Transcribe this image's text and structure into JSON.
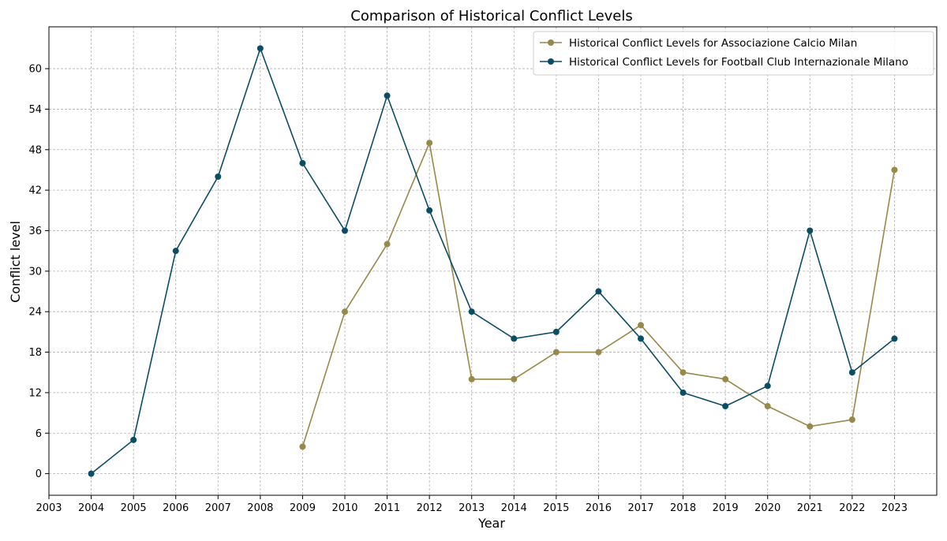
{
  "chart_data": {
    "type": "line",
    "title": "Comparison of Historical Conflict Levels",
    "xlabel": "Year",
    "ylabel": "Conflict level",
    "xlim": [
      2003,
      2024
    ],
    "ylim": [
      -3.2,
      66.2
    ],
    "x_ticks": [
      2003,
      2004,
      2005,
      2006,
      2007,
      2008,
      2009,
      2010,
      2011,
      2012,
      2013,
      2014,
      2015,
      2016,
      2017,
      2018,
      2019,
      2020,
      2021,
      2022,
      2023
    ],
    "y_ticks": [
      0,
      6,
      12,
      18,
      24,
      30,
      36,
      42,
      48,
      54,
      60
    ],
    "grid": true,
    "legend_position": "top-right",
    "series": [
      {
        "name": "Historical Conflict Levels for Associazione Calcio Milan",
        "color": "#97894a",
        "x": [
          2009,
          2010,
          2011,
          2012,
          2013,
          2014,
          2015,
          2016,
          2017,
          2018,
          2019,
          2020,
          2021,
          2022,
          2023
        ],
        "y": [
          4,
          24,
          34,
          49,
          14,
          14,
          18,
          18,
          22,
          15,
          14,
          10,
          7,
          8,
          45
        ]
      },
      {
        "name": "Historical Conflict Levels for Football Club Internazionale Milano",
        "color": "#0b4d64",
        "x": [
          2004,
          2005,
          2006,
          2007,
          2008,
          2009,
          2010,
          2011,
          2012,
          2013,
          2014,
          2015,
          2016,
          2017,
          2018,
          2019,
          2020,
          2021,
          2022,
          2023
        ],
        "y": [
          0,
          5,
          33,
          44,
          63,
          46,
          36,
          56,
          39,
          24,
          20,
          21,
          27,
          20,
          12,
          10,
          13,
          36,
          15,
          20
        ]
      }
    ]
  }
}
